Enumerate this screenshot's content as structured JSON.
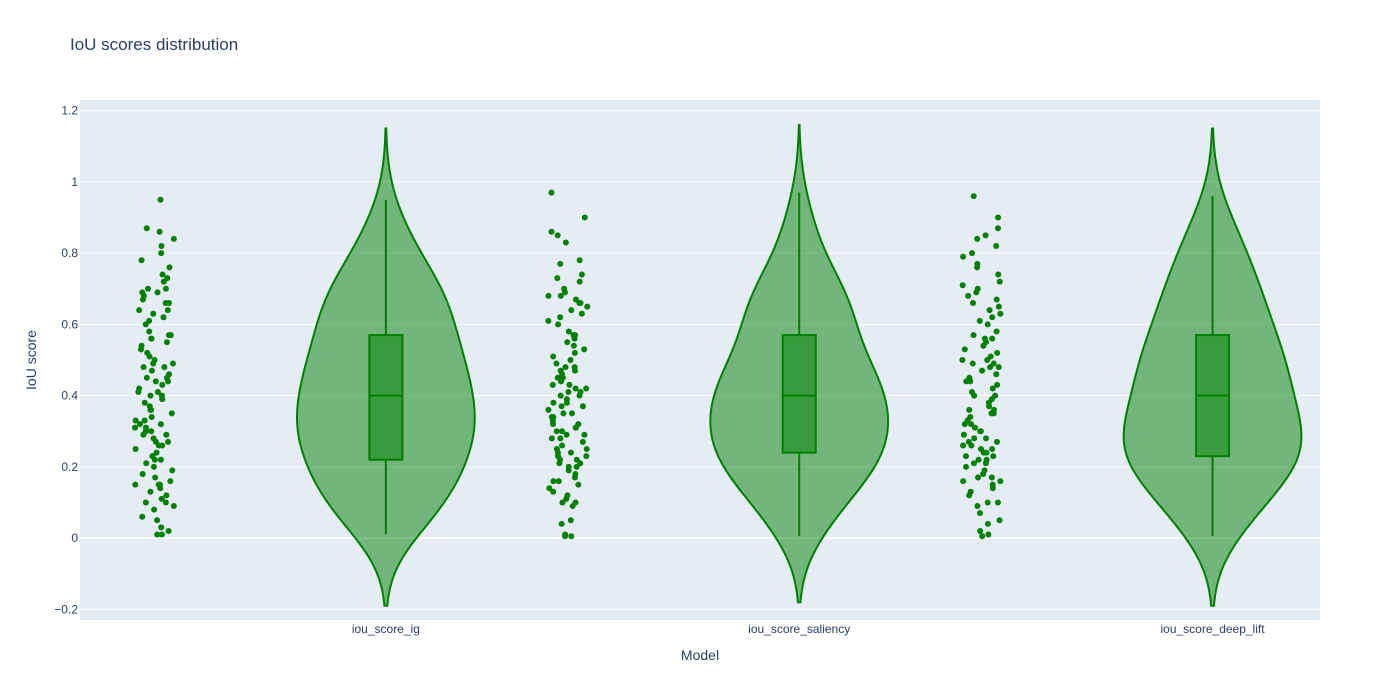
{
  "chart_data": {
    "type": "violin",
    "title": "IoU scores distribution",
    "xlabel": "Model",
    "ylabel": "IoU score",
    "ylim": [
      -0.23,
      1.23
    ],
    "yticks": [
      -0.2,
      0,
      0.2,
      0.4,
      0.6,
      0.8,
      1,
      1.2
    ],
    "ytick_labels": [
      "−0.2",
      "0",
      "0.2",
      "0.4",
      "0.6",
      "0.8",
      "1",
      "1.2"
    ],
    "grid": true,
    "colors": {
      "plot_bg": "#e5ecf6",
      "grid": "#ffffff",
      "fill": "#008000",
      "line": "#008000",
      "text": "#2a3f5f"
    },
    "categories": [
      "iou_score_ig",
      "iou_score_saliency",
      "iou_score_deep_lift"
    ],
    "series": [
      {
        "category": "iou_score_ig",
        "box": {
          "min": 0.01,
          "q1": 0.22,
          "median": 0.4,
          "q3": 0.57,
          "max": 0.95
        },
        "kde_range": [
          -0.19,
          1.15
        ],
        "points": [
          0.95,
          0.87,
          0.86,
          0.84,
          0.82,
          0.8,
          0.78,
          0.76,
          0.74,
          0.73,
          0.72,
          0.7,
          0.7,
          0.69,
          0.69,
          0.68,
          0.67,
          0.66,
          0.66,
          0.64,
          0.64,
          0.63,
          0.62,
          0.61,
          0.6,
          0.58,
          0.57,
          0.57,
          0.56,
          0.56,
          0.55,
          0.54,
          0.53,
          0.52,
          0.51,
          0.5,
          0.49,
          0.49,
          0.48,
          0.48,
          0.47,
          0.46,
          0.45,
          0.45,
          0.44,
          0.44,
          0.43,
          0.42,
          0.41,
          0.41,
          0.4,
          0.4,
          0.39,
          0.38,
          0.37,
          0.36,
          0.36,
          0.35,
          0.34,
          0.33,
          0.33,
          0.32,
          0.32,
          0.31,
          0.31,
          0.3,
          0.3,
          0.29,
          0.29,
          0.28,
          0.27,
          0.27,
          0.26,
          0.26,
          0.25,
          0.24,
          0.23,
          0.22,
          0.22,
          0.21,
          0.2,
          0.19,
          0.18,
          0.17,
          0.16,
          0.15,
          0.15,
          0.15,
          0.14,
          0.13,
          0.12,
          0.11,
          0.1,
          0.1,
          0.09,
          0.08,
          0.06,
          0.05,
          0.03,
          0.02,
          0.01,
          0.01
        ]
      },
      {
        "category": "iou_score_saliency",
        "box": {
          "min": 0.005,
          "q1": 0.24,
          "median": 0.4,
          "q3": 0.57,
          "max": 0.97
        },
        "kde_range": [
          -0.18,
          1.16
        ],
        "points": [
          0.97,
          0.9,
          0.86,
          0.85,
          0.83,
          0.78,
          0.77,
          0.74,
          0.73,
          0.72,
          0.7,
          0.69,
          0.68,
          0.68,
          0.67,
          0.66,
          0.66,
          0.65,
          0.64,
          0.63,
          0.62,
          0.61,
          0.6,
          0.58,
          0.57,
          0.57,
          0.56,
          0.55,
          0.54,
          0.53,
          0.52,
          0.51,
          0.5,
          0.49,
          0.48,
          0.48,
          0.47,
          0.47,
          0.46,
          0.45,
          0.45,
          0.44,
          0.43,
          0.43,
          0.42,
          0.42,
          0.41,
          0.41,
          0.4,
          0.4,
          0.39,
          0.38,
          0.38,
          0.37,
          0.37,
          0.36,
          0.35,
          0.35,
          0.34,
          0.34,
          0.33,
          0.32,
          0.32,
          0.31,
          0.31,
          0.3,
          0.3,
          0.29,
          0.29,
          0.28,
          0.28,
          0.27,
          0.26,
          0.25,
          0.25,
          0.24,
          0.24,
          0.23,
          0.23,
          0.22,
          0.22,
          0.21,
          0.21,
          0.2,
          0.2,
          0.19,
          0.18,
          0.17,
          0.16,
          0.16,
          0.15,
          0.14,
          0.13,
          0.12,
          0.11,
          0.1,
          0.1,
          0.09,
          0.05,
          0.04,
          0.01,
          0.005,
          0.005
        ]
      },
      {
        "category": "iou_score_deep_lift",
        "box": {
          "min": 0.005,
          "q1": 0.23,
          "median": 0.4,
          "q3": 0.57,
          "max": 0.96
        },
        "kde_range": [
          -0.19,
          1.15
        ],
        "points": [
          0.96,
          0.9,
          0.87,
          0.85,
          0.84,
          0.82,
          0.8,
          0.79,
          0.77,
          0.76,
          0.74,
          0.72,
          0.71,
          0.7,
          0.69,
          0.68,
          0.67,
          0.66,
          0.65,
          0.64,
          0.63,
          0.62,
          0.61,
          0.6,
          0.58,
          0.57,
          0.56,
          0.56,
          0.55,
          0.54,
          0.53,
          0.52,
          0.51,
          0.5,
          0.5,
          0.49,
          0.49,
          0.48,
          0.48,
          0.47,
          0.46,
          0.45,
          0.44,
          0.44,
          0.43,
          0.42,
          0.41,
          0.4,
          0.4,
          0.39,
          0.38,
          0.37,
          0.36,
          0.36,
          0.35,
          0.35,
          0.34,
          0.33,
          0.32,
          0.32,
          0.31,
          0.3,
          0.3,
          0.29,
          0.28,
          0.28,
          0.27,
          0.27,
          0.26,
          0.26,
          0.25,
          0.25,
          0.24,
          0.24,
          0.23,
          0.23,
          0.22,
          0.22,
          0.21,
          0.21,
          0.2,
          0.19,
          0.18,
          0.17,
          0.17,
          0.16,
          0.16,
          0.15,
          0.14,
          0.13,
          0.12,
          0.1,
          0.1,
          0.09,
          0.07,
          0.05,
          0.04,
          0.02,
          0.01,
          0.005
        ]
      }
    ]
  }
}
